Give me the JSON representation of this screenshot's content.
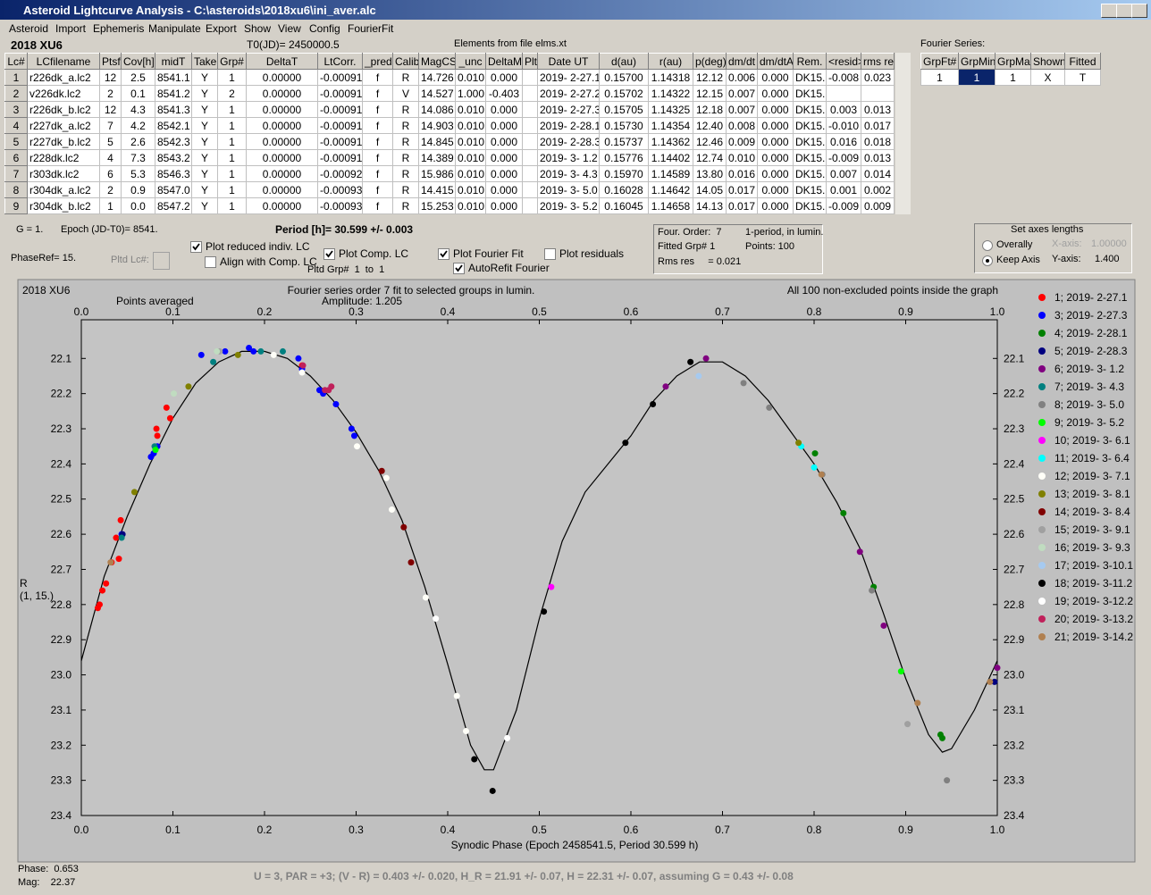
{
  "window": {
    "title": "Asteroid Lightcurve Analysis - C:\\asteroids\\2018xu6\\ini_aver.alc"
  },
  "menu": [
    "Asteroid",
    "Import",
    "Ephemeris",
    "Manipulate",
    "Export",
    "Show",
    "View",
    "Config",
    "FourierFit"
  ],
  "header": {
    "object": "2018 XU6",
    "t0": "T0(JD)= 2450000.5",
    "elements": "Elements from file elms.xt"
  },
  "table": {
    "columns": [
      "Lc#",
      "LCfilename",
      "Ptsf",
      "Cov[h]",
      "midT",
      "Take",
      "Grp#",
      "DeltaT",
      "LtCorr.",
      "_pred.",
      "Calib.",
      "MagCS",
      "_unc",
      "DeltaM",
      "Plt",
      "Date UT",
      "d(au)",
      "r(au)",
      "p(deg)",
      "dm/dt",
      "dm/dtA",
      "Rem.",
      "<resid>",
      "rms res"
    ],
    "rows": [
      [
        "1",
        "r226dk_a.lc2",
        "12",
        "2.5",
        "8541.1",
        "Y",
        "1",
        "0.00000",
        "-0.00091",
        "f",
        "R",
        "14.726",
        "0.010",
        "0.000",
        null,
        "2019- 2-27.1",
        "0.15700",
        "1.14318",
        "12.12",
        "0.006",
        "0.000",
        "DK15..",
        "-0.008",
        "0.023"
      ],
      [
        "2",
        "v226dk.lc2",
        "2",
        "0.1",
        "8541.2",
        "Y",
        "2",
        "0.00000",
        "-0.00091",
        "f",
        "V",
        "14.527",
        "1.000",
        "-0.403",
        null,
        "2019- 2-27.2",
        "0.15702",
        "1.14322",
        "12.15",
        "0.007",
        "0.000",
        "DK15..",
        null,
        null
      ],
      [
        "3",
        "r226dk_b.lc2",
        "12",
        "4.3",
        "8541.3",
        "Y",
        "1",
        "0.00000",
        "-0.00091",
        "f",
        "R",
        "14.086",
        "0.010",
        "0.000",
        null,
        "2019- 2-27.3",
        "0.15705",
        "1.14325",
        "12.18",
        "0.007",
        "0.000",
        "DK15..",
        "0.003",
        "0.013"
      ],
      [
        "4",
        "r227dk_a.lc2",
        "7",
        "4.2",
        "8542.1",
        "Y",
        "1",
        "0.00000",
        "-0.00091",
        "f",
        "R",
        "14.903",
        "0.010",
        "0.000",
        null,
        "2019- 2-28.1",
        "0.15730",
        "1.14354",
        "12.40",
        "0.008",
        "0.000",
        "DK15..",
        "-0.010",
        "0.017"
      ],
      [
        "5",
        "r227dk_b.lc2",
        "5",
        "2.6",
        "8542.3",
        "Y",
        "1",
        "0.00000",
        "-0.00091",
        "f",
        "R",
        "14.845",
        "0.010",
        "0.000",
        null,
        "2019- 2-28.3",
        "0.15737",
        "1.14362",
        "12.46",
        "0.009",
        "0.000",
        "DK15..",
        "0.016",
        "0.018"
      ],
      [
        "6",
        "r228dk.lc2",
        "4",
        "7.3",
        "8543.2",
        "Y",
        "1",
        "0.00000",
        "-0.00091",
        "f",
        "R",
        "14.389",
        "0.010",
        "0.000",
        null,
        "2019- 3- 1.2",
        "0.15776",
        "1.14402",
        "12.74",
        "0.010",
        "0.000",
        "DK15..",
        "-0.009",
        "0.013"
      ],
      [
        "7",
        "r303dk.lc2",
        "6",
        "5.3",
        "8546.3",
        "Y",
        "1",
        "0.00000",
        "-0.00092",
        "f",
        "R",
        "15.986",
        "0.010",
        "0.000",
        null,
        "2019- 3- 4.3",
        "0.15970",
        "1.14589",
        "13.80",
        "0.016",
        "0.000",
        "DK15..",
        "0.007",
        "0.014"
      ],
      [
        "8",
        "r304dk_a.lc2",
        "2",
        "0.9",
        "8547.0",
        "Y",
        "1",
        "0.00000",
        "-0.00093",
        "f",
        "R",
        "14.415",
        "0.010",
        "0.000",
        null,
        "2019- 3- 5.0",
        "0.16028",
        "1.14642",
        "14.05",
        "0.017",
        "0.000",
        "DK15..",
        "0.001",
        "0.002"
      ],
      [
        "9",
        "r304dk_b.lc2",
        "1",
        "0.0",
        "8547.2",
        "Y",
        "1",
        "0.00000",
        "-0.00093",
        "f",
        "R",
        "15.253",
        "0.010",
        "0.000",
        null,
        "2019- 3- 5.2",
        "0.16045",
        "1.14658",
        "14.13",
        "0.017",
        "0.000",
        "DK15..",
        "-0.009",
        "0.009"
      ]
    ]
  },
  "fourier_table": {
    "label": "Fourier Series:",
    "columns": [
      "GrpFt#",
      "GrpMin",
      "GrpMax",
      "Shown",
      "Fitted"
    ],
    "rows": [
      [
        "1",
        "1",
        "1",
        "X",
        "T"
      ]
    ]
  },
  "controls": {
    "g": "G = 1.",
    "epoch": "Epoch (JD-T0)= 8541.",
    "period": "Period [h]= 30.599 +/- 0.003",
    "phaseref": "PhaseRef= 15.",
    "pltd_lc": "Pltd Lc#:",
    "pltd_grp": "Pltd Grp#  1  to  1",
    "checkboxes": [
      {
        "label": "Plot reduced indiv. LC",
        "checked": true
      },
      {
        "label": "Align with Comp. LC",
        "checked": false
      },
      {
        "label": "Plot Comp. LC",
        "checked": true
      },
      {
        "label": "Plot Fourier Fit",
        "checked": true
      },
      {
        "label": "Plot residuals",
        "checked": false
      },
      {
        "label": "AutoRefit Fourier",
        "checked": true
      }
    ]
  },
  "fit_info": {
    "order": "Four. Order:  7",
    "mode": "1-period, in lumin.",
    "grp": "Fitted Grp# 1",
    "points": "Points: 100",
    "rms": "Rms res     = 0.021"
  },
  "axes_box": {
    "title": "Set axes lengths",
    "options": [
      {
        "label": "Overally",
        "selected": false
      },
      {
        "label": "Keep Axis",
        "selected": true
      }
    ],
    "x_label": "X-axis:",
    "x_value": "1.00000",
    "y_label": "Y-axis:",
    "y_value": "1.400"
  },
  "chart_data": {
    "type": "scatter",
    "title": "2018 XU6",
    "subtitle": "Fourier series order 7 fit to selected groups in lumin.",
    "amplitude": "Amplitude: 1.205",
    "note_left": "Points averaged",
    "note_right": "All 100 non-excluded points inside the graph",
    "x_label": "Synodic Phase (Epoch 2458541.5, Period 30.599 h)",
    "y_label": "R",
    "y_label2": "(1, 15.)",
    "xlim": [
      0,
      1
    ],
    "ylim": [
      23.4,
      21.99
    ],
    "xticks": [
      {
        "value": 0,
        "label": "0.0"
      },
      0.1,
      0.2,
      0.3,
      0.4,
      0.5,
      0.6,
      0.7,
      0.8,
      0.9,
      {
        "value": 1,
        "label": "1.0"
      }
    ],
    "yticks": [
      22.1,
      22.2,
      22.3,
      22.4,
      22.5,
      22.6,
      22.7,
      22.8,
      22.9,
      {
        "value": 23,
        "label": "23.0"
      },
      23.1,
      23.2,
      23.3,
      23.4
    ],
    "fit": {
      "color": "#000000",
      "x": [
        0,
        0.025,
        0.05,
        0.075,
        0.1,
        0.125,
        0.15,
        0.175,
        0.2,
        0.225,
        0.25,
        0.275,
        0.3,
        0.325,
        0.35,
        0.375,
        0.4,
        0.425,
        0.44,
        0.45,
        0.475,
        0.5,
        0.525,
        0.55,
        0.575,
        0.6,
        0.625,
        0.65,
        0.675,
        0.7,
        0.725,
        0.75,
        0.775,
        0.8,
        0.825,
        0.85,
        0.875,
        0.9,
        0.925,
        0.94,
        0.95,
        0.975,
        1
      ],
      "values": [
        22.96,
        22.72,
        22.55,
        22.4,
        22.27,
        22.17,
        22.11,
        22.08,
        22.08,
        22.1,
        22.15,
        22.22,
        22.31,
        22.42,
        22.56,
        22.75,
        22.97,
        23.2,
        23.27,
        23.27,
        23.1,
        22.84,
        22.62,
        22.48,
        22.4,
        22.32,
        22.22,
        22.15,
        22.11,
        22.11,
        22.15,
        22.22,
        22.31,
        22.4,
        22.51,
        22.64,
        22.82,
        23.01,
        23.17,
        23.22,
        23.21,
        23.1,
        22.96
      ]
    },
    "series": [
      {
        "name": "1; 2019- 2-27.1",
        "color": "#ff0000",
        "x": [
          0.018,
          0.02,
          0.023,
          0.027,
          0.033,
          0.038,
          0.041,
          0.043,
          0.082,
          0.083,
          0.093,
          0.097,
          0.241
        ],
        "values": [
          22.81,
          22.8,
          22.76,
          22.74,
          22.68,
          22.61,
          22.67,
          22.56,
          22.3,
          22.32,
          22.24,
          22.27,
          22.12
        ]
      },
      {
        "name": "3; 2019- 2-27.3",
        "color": "#0000ff",
        "x": [
          0.076,
          0.079,
          0.083,
          0.044,
          0.131,
          0.157,
          0.183,
          0.188,
          0.237,
          0.241,
          0.26,
          0.264,
          0.278,
          0.295,
          0.298
        ],
        "values": [
          22.38,
          22.37,
          22.35,
          22.6,
          22.09,
          22.08,
          22.07,
          22.08,
          22.1,
          22.13,
          22.19,
          22.2,
          22.23,
          22.3,
          22.32
        ]
      },
      {
        "name": "4; 2019- 2-28.1",
        "color": "#008000",
        "x": [
          0.801,
          0.832,
          0.865,
          0.938,
          0.94
        ],
        "values": [
          22.37,
          22.54,
          22.75,
          23.17,
          23.18
        ]
      },
      {
        "name": "5; 2019- 2-28.3",
        "color": "#000080",
        "x": [
          0.045,
          0.997
        ],
        "values": [
          22.6,
          23.02
        ]
      },
      {
        "name": "6; 2019- 3- 1.2",
        "color": "#800080",
        "x": [
          0.638,
          0.682,
          0.85,
          0.876,
          1
        ],
        "values": [
          22.18,
          22.1,
          22.65,
          22.86,
          22.98
        ]
      },
      {
        "name": "7; 2019- 3- 4.3",
        "color": "#008080",
        "x": [
          0.044,
          0.08,
          0.144,
          0.196,
          0.22
        ],
        "values": [
          22.61,
          22.35,
          22.11,
          22.08,
          22.08
        ]
      },
      {
        "name": "8; 2019- 3- 5.0",
        "color": "#808080",
        "x": [
          0.723,
          0.751,
          0.809,
          0.863,
          0.945
        ],
        "values": [
          22.17,
          22.24,
          22.43,
          22.76,
          23.3
        ]
      },
      {
        "name": "9; 2019- 3- 5.2",
        "color": "#00ff00",
        "x": [
          0.081,
          0.895
        ],
        "values": [
          22.36,
          22.99
        ]
      },
      {
        "name": "10; 2019- 3- 6.1",
        "color": "#ff00ff",
        "x": [
          0.513
        ],
        "values": [
          22.75
        ]
      },
      {
        "name": "11; 2019- 3- 6.4",
        "color": "#00ffff",
        "x": [
          0.786,
          0.8
        ],
        "values": [
          22.35,
          22.41
        ]
      },
      {
        "name": "12; 2019- 3- 7.1",
        "color": "#fffff8",
        "x": [
          0.21,
          0.241,
          0.301,
          0.333,
          0.339,
          0.376,
          0.41,
          0.42
        ],
        "values": [
          22.09,
          22.14,
          22.35,
          22.44,
          22.53,
          22.78,
          23.06,
          23.16
        ]
      },
      {
        "name": "13; 2019- 3- 8.1",
        "color": "#808000",
        "x": [
          0.058,
          0.117,
          0.171,
          0.783
        ],
        "values": [
          22.48,
          22.18,
          22.09,
          22.34
        ]
      },
      {
        "name": "14; 2019- 3- 8.4",
        "color": "#800000",
        "x": [
          0.328,
          0.352,
          0.36
        ],
        "values": [
          22.42,
          22.58,
          22.68
        ]
      },
      {
        "name": "15; 2019- 3- 9.1",
        "color": "#a0a0a0",
        "x": [
          0.151,
          0.902
        ],
        "values": [
          22.08,
          23.14
        ]
      },
      {
        "name": "16; 2019- 3- 9.3",
        "color": "#c0dcc0",
        "x": [
          0.101,
          0.148
        ],
        "values": [
          22.2,
          22.08
        ]
      },
      {
        "name": "17; 2019- 3-10.1",
        "color": "#a6caf0",
        "x": [
          0.674
        ],
        "values": [
          22.15
        ]
      },
      {
        "name": "18; 2019- 3-11.2",
        "color": "#000000",
        "x": [
          0.429,
          0.449,
          0.505,
          0.594,
          0.624,
          0.665
        ],
        "values": [
          23.24,
          23.33,
          22.82,
          22.34,
          22.23,
          22.11
        ]
      },
      {
        "name": "19; 2019- 3-12.2",
        "color": "#ffffff",
        "x": [
          0.387,
          0.465
        ],
        "values": [
          22.84,
          23.18
        ]
      },
      {
        "name": "20; 2019- 3-13.2",
        "color": "#c0205a",
        "x": [
          0.242,
          0.266,
          0.27,
          0.273
        ],
        "values": [
          22.12,
          22.19,
          22.19,
          22.18
        ]
      },
      {
        "name": "21; 2019- 3-14.2",
        "color": "#b08050",
        "x": [
          0.032,
          0.808,
          0.913,
          0.992
        ],
        "values": [
          22.68,
          22.43,
          23.08,
          23.02
        ]
      }
    ]
  },
  "status": {
    "phase": "Phase:  0.653",
    "mag": "Mag:    22.37",
    "result": "U = 3, PAR = +3; (V - R) = 0.403 +/- 0.020, H_R = 21.91 +/- 0.07, H = 22.31 +/- 0.07, assuming G = 0.43 +/- 0.08"
  }
}
